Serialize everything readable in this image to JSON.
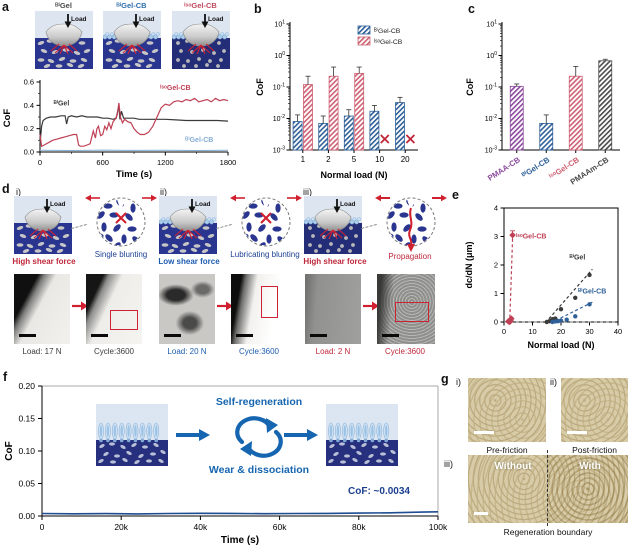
{
  "panel_labels": {
    "a": "a",
    "b": "b",
    "c": "c",
    "d": "d",
    "e": "e",
    "f": "f",
    "g": "g"
  },
  "panel_a": {
    "load_label": "Load",
    "schematics": [
      {
        "label": "ᴮⁱGel",
        "color": "#4a4a4a"
      },
      {
        "label": "ᴮⁱGel-CB",
        "color": "#2e6fad"
      },
      {
        "label": "ᴵˢᵒGel-CB",
        "color": "#c04a5e"
      }
    ]
  },
  "panel_d": {
    "sections": [
      {
        "num": "i)",
        "condition": "High shear force",
        "condition_color": "#c0273a",
        "mechanism": "Single blunting",
        "mechanism_color": "#1d3f94",
        "load": "Load: 17 N",
        "cycle": "Cycle:3600",
        "caption_color": "#3a3a3a"
      },
      {
        "num": "ii)",
        "condition": "Low shear force",
        "condition_color": "#1d5db0",
        "mechanism": "Lubricating blunting",
        "mechanism_color": "#1d3f94",
        "load": "Load: 20 N",
        "cycle": "Cycle:3600",
        "caption_color": "#1d5db0"
      },
      {
        "num": "iii)",
        "condition": "High shear force",
        "condition_color": "#c0273a",
        "mechanism": "Propagation",
        "mechanism_color": "#c0273a",
        "load": "Load: 2 N",
        "cycle": "Cycle:3600",
        "caption_color": "#c0273a"
      }
    ]
  },
  "panel_f": {
    "self_regeneration": "Self-regeneration",
    "wear": "Wear & dissociation",
    "annotation": "CoF: ~0.0034",
    "accent": "#1565b0",
    "annotation_color": "#1b3f8f"
  },
  "panel_g": {
    "i_num": "i)",
    "ii_num": "ii)",
    "iii_num": "iii)",
    "i_caption": "Pre-friction",
    "ii_caption": "Post-friction",
    "without": "Without",
    "with": "With",
    "boundary_caption": "Regeneration boundary"
  },
  "chart_data": [
    {
      "id": "a",
      "type": "line",
      "xlabel": "Time (s)",
      "ylabel": "CoF",
      "xlim": [
        0,
        1800
      ],
      "ylim": [
        0,
        0.6
      ],
      "xticks": [
        0,
        600,
        1200,
        1800
      ],
      "yticks": [
        0,
        0.2,
        0.4,
        0.6
      ],
      "series": [
        {
          "name": "ᴮⁱGel",
          "color": "#3a3a3a",
          "x": [
            0,
            15,
            30,
            60,
            100,
            150,
            200,
            240,
            255,
            270,
            300,
            350,
            400,
            450,
            500,
            550,
            600,
            650,
            700,
            730,
            755,
            765,
            780,
            800,
            850,
            900,
            950,
            1000,
            1100,
            1200,
            1300,
            1400,
            1500,
            1600,
            1700,
            1800
          ],
          "y": [
            0.07,
            0.22,
            0.27,
            0.29,
            0.3,
            0.3,
            0.31,
            0.31,
            0.24,
            0.3,
            0.31,
            0.3,
            0.31,
            0.3,
            0.3,
            0.3,
            0.29,
            0.29,
            0.28,
            0.29,
            0.4,
            0.28,
            0.35,
            0.29,
            0.29,
            0.29,
            0.28,
            0.28,
            0.28,
            0.28,
            0.275,
            0.27,
            0.27,
            0.27,
            0.27,
            0.265
          ]
        },
        {
          "name": "ᴵˢᵒGel-CB",
          "color": "#bf4055",
          "x": [
            0,
            15,
            40,
            80,
            120,
            160,
            200,
            240,
            280,
            320,
            350,
            370,
            385,
            420,
            450,
            480,
            510,
            530,
            545,
            560,
            580,
            600,
            620,
            640,
            660,
            680,
            700,
            720,
            740,
            755,
            770,
            790,
            810,
            840,
            870,
            900,
            930,
            960,
            1000,
            1040,
            1080,
            1120,
            1160,
            1200,
            1240,
            1280,
            1320,
            1360,
            1400,
            1440,
            1480,
            1520,
            1560,
            1600,
            1640,
            1680,
            1720,
            1760,
            1800
          ],
          "y": [
            0.15,
            0.05,
            0.06,
            0.08,
            0.1,
            0.11,
            0.12,
            0.13,
            0.14,
            0.15,
            0.15,
            0.06,
            0.05,
            0.05,
            0.06,
            0.07,
            0.18,
            0.12,
            0.2,
            0.22,
            0.14,
            0.15,
            0.22,
            0.19,
            0.25,
            0.2,
            0.26,
            0.28,
            0.32,
            0.42,
            0.3,
            0.25,
            0.28,
            0.26,
            0.25,
            0.2,
            0.17,
            0.15,
            0.15,
            0.17,
            0.22,
            0.3,
            0.38,
            0.41,
            0.4,
            0.43,
            0.44,
            0.43,
            0.45,
            0.44,
            0.46,
            0.43,
            0.44,
            0.45,
            0.43,
            0.46,
            0.44,
            0.45,
            0.44
          ]
        },
        {
          "name": "ᴮⁱGel-CB",
          "color": "#85add4",
          "x": [
            0,
            300,
            600,
            900,
            1200,
            1500,
            1800
          ],
          "y": [
            0.015,
            0.013,
            0.016,
            0.014,
            0.015,
            0.013,
            0.015
          ]
        }
      ]
    },
    {
      "id": "b",
      "type": "bar",
      "xlabel": "Normal load (N)",
      "ylabel": "CoF",
      "yscale": "log",
      "ylim": [
        0.001,
        10
      ],
      "categories": [
        "1",
        "2",
        "5",
        "10",
        "20"
      ],
      "series": [
        {
          "name": "ᴮⁱGel-CB",
          "color": "#2e5f97",
          "values": [
            0.008,
            0.007,
            0.012,
            0.017,
            0.032
          ],
          "errors_hi": [
            0.013,
            0.012,
            0.019,
            0.026,
            0.047
          ]
        },
        {
          "name": "ᴵˢᵒGel-CB",
          "color": "#cd6072",
          "values": [
            0.12,
            0.22,
            0.27,
            null,
            null
          ],
          "errors_hi": [
            0.22,
            0.43,
            0.43,
            null,
            null
          ]
        }
      ],
      "legend_position": "top-right"
    },
    {
      "id": "c",
      "type": "bar",
      "xlabel": "",
      "ylabel": "CoF",
      "yscale": "log",
      "ylim": [
        0.001,
        10
      ],
      "categories": [
        "PMAA-CB",
        "ᴮⁱGel-CB",
        "ᴵˢᵒGel-CB",
        "PMAAm-CB"
      ],
      "colors": [
        "#8c4a9e",
        "#2e5f97",
        "#cd6072",
        "#4a4a4a"
      ],
      "values": [
        0.105,
        0.007,
        0.22,
        0.68
      ],
      "errors_hi": [
        0.125,
        0.013,
        0.45,
        0.76
      ]
    },
    {
      "id": "e",
      "type": "scatter",
      "xlabel": "Normal load (N)",
      "ylabel": "dc/dN (μm)",
      "xlim": [
        0,
        40
      ],
      "ylim": [
        0,
        4
      ],
      "xticks": [
        0,
        10,
        20,
        30,
        40
      ],
      "yticks": [
        0,
        1,
        2,
        3,
        4
      ],
      "series": [
        {
          "name": "ᴵˢᵒGel-CB",
          "color": "#bf4055",
          "points": [
            [
              1.5,
              0.02
            ],
            [
              2,
              0
            ],
            [
              2.3,
              0.05
            ],
            [
              2.6,
              0.12
            ],
            [
              3,
              3.05
            ]
          ]
        },
        {
          "name": "ᴮⁱGel",
          "color": "#3a3a3a",
          "points": [
            [
              15,
              0
            ],
            [
              16,
              0.03
            ],
            [
              17,
              0.1
            ],
            [
              18,
              0.12
            ],
            [
              20,
              0.45
            ],
            [
              25,
              0.85
            ],
            [
              30,
              1.65
            ]
          ]
        },
        {
          "name": "ᴮⁱGel-CB",
          "color": "#2e5f97",
          "points": [
            [
              17,
              0
            ],
            [
              18,
              0.02
            ],
            [
              19,
              0.03
            ],
            [
              20,
              0.05
            ],
            [
              22,
              0.08
            ],
            [
              25,
              0.2
            ],
            [
              30,
              0.62
            ]
          ]
        }
      ]
    },
    {
      "id": "f",
      "type": "line",
      "xlabel": "Time (s)",
      "ylabel": "CoF",
      "xlim": [
        0,
        100000
      ],
      "ylim": [
        0,
        0.2
      ],
      "xticks": [
        0,
        20000,
        40000,
        60000,
        80000,
        100000
      ],
      "xtick_labels": [
        "0",
        "20k",
        "40k",
        "60k",
        "80k",
        "100k"
      ],
      "yticks": [
        0,
        0.05,
        0.1,
        0.15,
        0.2
      ],
      "ytick_labels": [
        "0.00",
        "0.05",
        "0.10",
        "0.15",
        "0.20"
      ],
      "series": [
        {
          "name": "ᴮⁱGel-CB",
          "color": "#1e4d92",
          "points": [
            [
              0,
              0.0038
            ],
            [
              8000,
              0.0034
            ],
            [
              16000,
              0.0037
            ],
            [
              24000,
              0.0033
            ],
            [
              32000,
              0.0038
            ],
            [
              40000,
              0.0042
            ],
            [
              48000,
              0.004
            ],
            [
              56000,
              0.0036
            ],
            [
              64000,
              0.0038
            ],
            [
              72000,
              0.004
            ],
            [
              80000,
              0.0045
            ],
            [
              88000,
              0.005
            ],
            [
              96000,
              0.006
            ],
            [
              100000,
              0.0065
            ]
          ]
        }
      ],
      "annotation": "CoF: ~0.0034"
    }
  ]
}
